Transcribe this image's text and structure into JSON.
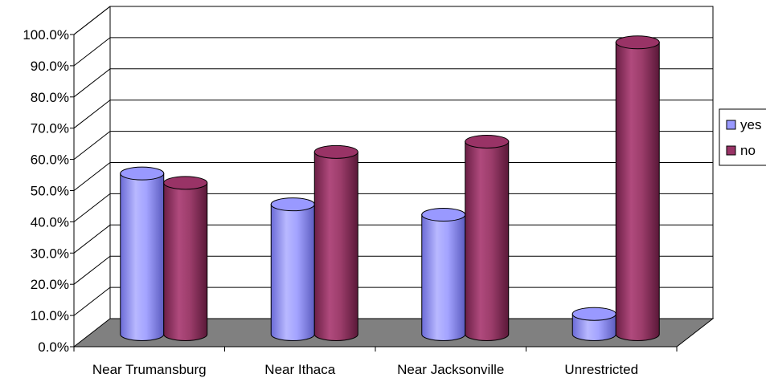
{
  "chart_data": {
    "type": "bar",
    "style": "3d-cylinder",
    "categories": [
      "Near Trumansburg",
      "Near Ithaca",
      "Near Jacksonville",
      "Unrestricted"
    ],
    "series": [
      {
        "name": "yes",
        "values": [
          51.5,
          41.6,
          38.3,
          6.5
        ],
        "color": "#9999ff"
      },
      {
        "name": "no",
        "values": [
          48.5,
          58.4,
          61.7,
          93.5
        ],
        "color": "#993366"
      }
    ],
    "y_ticks": [
      "0.0%",
      "10.0%",
      "20.0%",
      "30.0%",
      "40.0%",
      "50.0%",
      "60.0%",
      "70.0%",
      "80.0%",
      "90.0%",
      "100.0%"
    ],
    "ylim": [
      0,
      100
    ],
    "grid": true,
    "legend": "right",
    "floor_color": "#808080",
    "title": "",
    "xlabel": "",
    "ylabel": ""
  }
}
